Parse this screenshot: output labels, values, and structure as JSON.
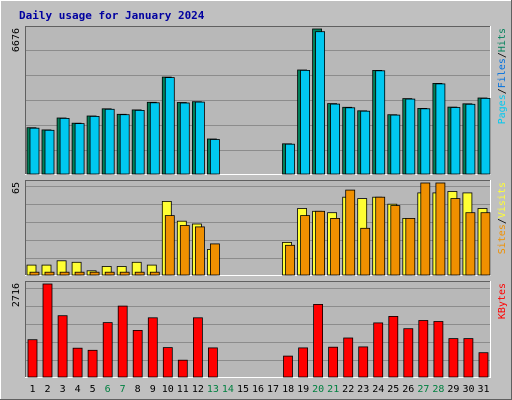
{
  "chart_data": {
    "type": "bar",
    "title": "Daily usage for January 2024",
    "categories": [
      "1",
      "2",
      "3",
      "4",
      "5",
      "6",
      "7",
      "8",
      "9",
      "10",
      "11",
      "12",
      "13",
      "14",
      "15",
      "16",
      "17",
      "18",
      "19",
      "20",
      "21",
      "22",
      "23",
      "24",
      "25",
      "26",
      "27",
      "28",
      "29",
      "30",
      "31"
    ],
    "weekend_days": [
      6,
      7,
      13,
      14,
      20,
      21,
      27,
      28
    ],
    "colors": {
      "background": "#c0c0c0",
      "plot": "#b8b8b8",
      "grid": "#8c8c8c",
      "title": "#0000a0",
      "weekday_label": "#000000",
      "weekend_label": "#008040",
      "hits": "#00805a",
      "files": "#00c8f0",
      "pages": "#0070e0",
      "visits": "#f09000",
      "sites": "#ffff33",
      "kbytes": "#ff0000"
    },
    "panels": [
      {
        "name": "pages-files-hits",
        "ymax_label": "6676",
        "ymax": 6676,
        "legend": [
          {
            "text": "Pages",
            "color": "#00c8f0"
          },
          {
            "text": "/",
            "color": "#000000"
          },
          {
            "text": "Files",
            "color": "#0070e0"
          },
          {
            "text": "/",
            "color": "#000000"
          },
          {
            "text": "Hits",
            "color": "#00805a"
          }
        ],
        "series": [
          {
            "key": "hits",
            "color": "#00805a",
            "values": [
              2130,
              2030,
              2580,
              2340,
              2670,
              3000,
              2750,
              2950,
              3300,
              4460,
              3290,
              3330,
              1610,
              0,
              0,
              0,
              0,
              1390,
              4790,
              6676,
              3240,
              3070,
              2910,
              4770,
              2730,
              3470,
              3020,
              4170,
              3080,
              3230,
              3500
            ]
          },
          {
            "key": "files",
            "color": "#00c8f0",
            "values": [
              2110,
              2010,
              2560,
              2320,
              2650,
              2980,
              2730,
              2930,
              3280,
              4440,
              3270,
              3310,
              1590,
              0,
              0,
              0,
              0,
              1370,
              4770,
              6550,
              3220,
              3050,
              2890,
              4750,
              2710,
              3450,
              3000,
              4150,
              3060,
              3210,
              3480
            ]
          },
          {
            "key": "pages",
            "color": "#0070e0",
            "values": [
              0,
              0,
              0,
              0,
              0,
              0,
              0,
              0,
              0,
              0,
              0,
              0,
              0,
              0,
              0,
              0,
              0,
              0,
              0,
              0,
              0,
              0,
              0,
              0,
              0,
              0,
              0,
              0,
              0,
              0,
              0
            ]
          }
        ]
      },
      {
        "name": "sites-visits",
        "ymax_label": "65",
        "ymax": 65,
        "legend": [
          {
            "text": "Sites",
            "color": "#f09000"
          },
          {
            "text": "/",
            "color": "#000000"
          },
          {
            "text": "Visits",
            "color": "#ffff33"
          }
        ],
        "series": [
          {
            "key": "visits",
            "color": "#ffff33",
            "values": [
              7,
              7,
              10,
              9,
              3,
              6,
              6,
              9,
              7,
              52,
              38,
              36,
              18,
              0,
              0,
              0,
              0,
              23,
              47,
              45,
              44,
              55,
              54,
              55,
              50,
              40,
              58,
              58,
              59,
              58,
              47
            ]
          },
          {
            "key": "sites",
            "color": "#f09000",
            "values": [
              2,
              2,
              2,
              2,
              2,
              2,
              2,
              2,
              2,
              42,
              35,
              34,
              22,
              0,
              0,
              0,
              0,
              21,
              42,
              45,
              40,
              60,
              33,
              55,
              49,
              40,
              65,
              65,
              54,
              44,
              44
            ]
          }
        ]
      },
      {
        "name": "kbytes",
        "ymax_label": "2716",
        "ymax": 2716,
        "legend": [
          {
            "text": "KBytes",
            "color": "#ff0000"
          }
        ],
        "series": [
          {
            "key": "kbytes",
            "color": "#ff0000",
            "values": [
              1090,
              2716,
              1790,
              840,
              780,
              1590,
              2070,
              1360,
              1730,
              860,
              490,
              1730,
              850,
              0,
              0,
              0,
              0,
              610,
              850,
              2120,
              870,
              1140,
              880,
              1580,
              1770,
              1410,
              1650,
              1620,
              1120,
              1120,
              710
            ]
          }
        ]
      }
    ]
  }
}
